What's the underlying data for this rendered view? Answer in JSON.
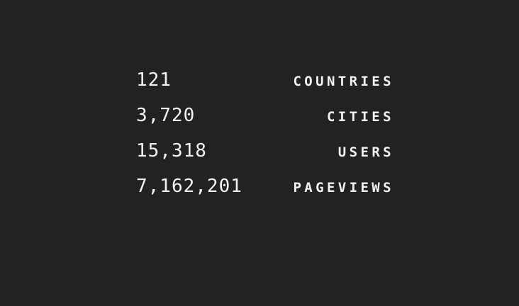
{
  "theme": {
    "background": "#222222",
    "text": "#f2f2f2"
  },
  "stats": [
    {
      "value": "121",
      "label": "COUNTRIES"
    },
    {
      "value": "3,720",
      "label": "CITIES"
    },
    {
      "value": "15,318",
      "label": "USERS"
    },
    {
      "value": "7,162,201",
      "label": "PAGEVIEWS"
    }
  ]
}
